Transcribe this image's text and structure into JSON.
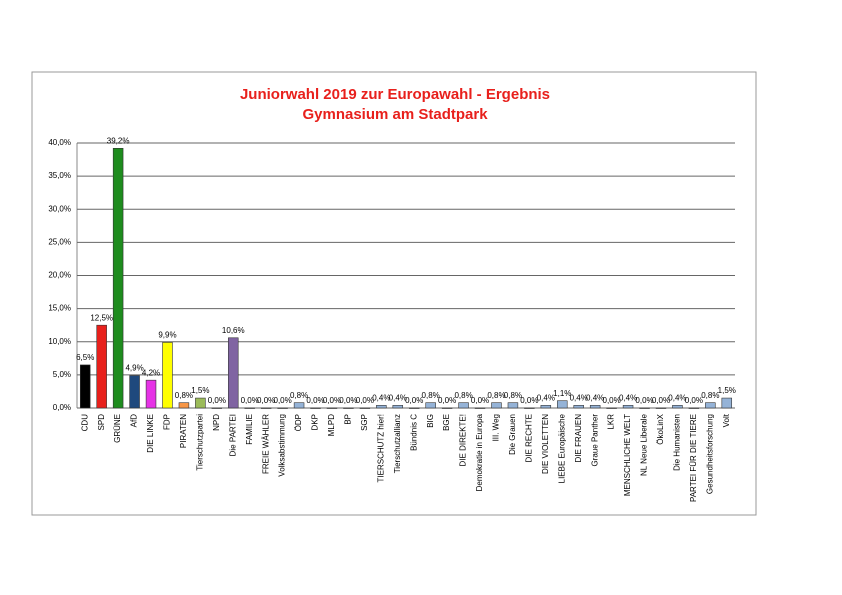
{
  "chart_data": {
    "type": "bar",
    "title": "Juniorwahl 2019 zur Europawahl - Ergebnis",
    "subtitle": "Gymnasium am Stadtpark",
    "categories": [
      "CDU",
      "SPD",
      "GRÜNE",
      "AfD",
      "DIE LINKE",
      "FDP",
      "PIRATEN",
      "Tierschutzpartei",
      "NPD",
      "Die PARTEI",
      "FAMILIE",
      "FREIE WÄHLER",
      "Volksabstimmung",
      "ÖDP",
      "DKP",
      "MLPD",
      "BP",
      "SGP",
      "TIERSCHUTZ hier!",
      "Tierschutzallianz",
      "Bündnis C",
      "BIG",
      "BGE",
      "DIE DIREKTE!",
      "Demokratie in Europa",
      "III. Weg",
      "Die Grauen",
      "DIE RECHTE",
      "DIE VIOLETTEN",
      "LIEBE Europäische",
      "DIE FRAUEN",
      "Graue Panther",
      "LKR",
      "MENSCHLICHE WELT",
      "NL Neue Liberale",
      "ÖkoLinX",
      "Die Humanisten",
      "PARTEI FÜR DIE TIERE",
      "Gesundheitsforschung",
      "Volt"
    ],
    "values": [
      6.5,
      12.5,
      39.2,
      4.9,
      4.2,
      9.9,
      0.8,
      1.5,
      0.0,
      10.6,
      0.0,
      0.0,
      0.0,
      0.8,
      0.0,
      0.0,
      0.0,
      0.0,
      0.4,
      0.4,
      0.0,
      0.8,
      0.0,
      0.8,
      0.0,
      0.8,
      0.8,
      0.0,
      0.4,
      1.1,
      0.4,
      0.4,
      0.0,
      0.4,
      0.0,
      0.0,
      0.4,
      0.0,
      0.8,
      1.5
    ],
    "value_labels": [
      "6,5%",
      "12,5%",
      "39,2%",
      "4,9%",
      "4,2%",
      "9,9%",
      "0,8%",
      "1,5%",
      "0,0%",
      "10,6%",
      "0,0%",
      "0,0%",
      "0,0%",
      "0,8%",
      "0,0%",
      "0,0%",
      "0,0%",
      "0,0%",
      "0,4%",
      "0,4%",
      "0,0%",
      "0,8%",
      "0,0%",
      "0,8%",
      "0,0%",
      "0,8%",
      "0,8%",
      "0,0%",
      "0,4%",
      "1,1%",
      "0,4%",
      "0,4%",
      "0,0%",
      "0,4%",
      "0,0%",
      "0,0%",
      "0,4%",
      "0,0%",
      "0,8%",
      "1,5%"
    ],
    "colors": [
      "#000000",
      "#e8201c",
      "#1e8c1e",
      "#1f497d",
      "#e633e6",
      "#ffff00",
      "#f79646",
      "#9bbb59",
      "#8b5a2b",
      "#8064a2",
      "#95b3d7",
      "#95b3d7",
      "#95b3d7",
      "#95b3d7",
      "#95b3d7",
      "#95b3d7",
      "#95b3d7",
      "#95b3d7",
      "#95b3d7",
      "#95b3d7",
      "#95b3d7",
      "#95b3d7",
      "#95b3d7",
      "#95b3d7",
      "#95b3d7",
      "#95b3d7",
      "#95b3d7",
      "#95b3d7",
      "#95b3d7",
      "#95b3d7",
      "#95b3d7",
      "#95b3d7",
      "#95b3d7",
      "#95b3d7",
      "#95b3d7",
      "#95b3d7",
      "#95b3d7",
      "#95b3d7",
      "#95b3d7",
      "#95b3d7"
    ],
    "ylim": [
      0,
      40
    ],
    "yticks": [
      {
        "value": 0,
        "label": "0,0%"
      },
      {
        "value": 5,
        "label": "5,0%"
      },
      {
        "value": 10,
        "label": "10,0%"
      },
      {
        "value": 15,
        "label": "15,0%"
      },
      {
        "value": 20,
        "label": "20,0%"
      },
      {
        "value": 25,
        "label": "25,0%"
      },
      {
        "value": 30,
        "label": "30,0%"
      },
      {
        "value": 35,
        "label": "35,0%"
      },
      {
        "value": 40,
        "label": "40,0%"
      }
    ],
    "grid": true
  }
}
